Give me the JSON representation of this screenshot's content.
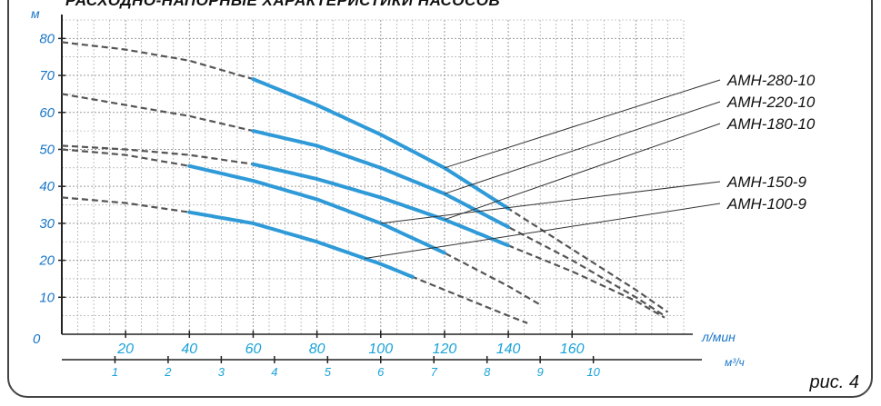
{
  "chart_data": {
    "type": "line",
    "title": "РАСХОДНО-НАПОРНЫЕ ХАРАКТЕРИСТИКИ НАСОСОВ",
    "ylabel": "м",
    "y_origin_label": "0",
    "ylim": [
      0,
      85
    ],
    "yticks": [
      10,
      20,
      30,
      40,
      50,
      60,
      70,
      80
    ],
    "xlabel": "л/мин",
    "xlim": [
      0,
      195
    ],
    "xticks": [
      20,
      40,
      60,
      80,
      100,
      120,
      140,
      160
    ],
    "x2label": "м³/ч",
    "x2ticks": [
      1,
      2,
      3,
      4,
      5,
      6,
      7,
      8,
      9,
      10
    ],
    "grid": true,
    "series": [
      {
        "name": "АМН-280-10",
        "x": [
          0,
          20,
          40,
          60,
          80,
          100,
          120,
          140,
          160,
          180,
          190
        ],
        "y": [
          79,
          77,
          74,
          69,
          62,
          54,
          45,
          34,
          23,
          12,
          6
        ],
        "op_range": [
          60,
          140
        ]
      },
      {
        "name": "АМН-220-10",
        "x": [
          0,
          20,
          40,
          60,
          80,
          100,
          120,
          140,
          160,
          180,
          189
        ],
        "y": [
          65,
          62,
          59,
          55,
          51,
          45,
          38,
          29,
          20,
          10,
          5
        ],
        "op_range": [
          60,
          140
        ]
      },
      {
        "name": "АМН-180-10",
        "x": [
          0,
          20,
          40,
          60,
          80,
          100,
          120,
          140,
          160,
          180,
          189
        ],
        "y": [
          51,
          50,
          48.5,
          46,
          42,
          37,
          31,
          24,
          17,
          9,
          4.5
        ],
        "op_range": [
          60,
          140
        ]
      },
      {
        "name": "АМН-150-9",
        "x": [
          0,
          20,
          40,
          60,
          80,
          100,
          120,
          140,
          150
        ],
        "y": [
          50,
          48.5,
          45.5,
          41.5,
          36.5,
          30,
          22,
          13,
          8
        ],
        "op_range": [
          40,
          120
        ]
      },
      {
        "name": "АМН-100-9",
        "x": [
          0,
          20,
          40,
          60,
          80,
          100,
          120,
          140,
          146
        ],
        "y": [
          37,
          35.5,
          33,
          30,
          25,
          19,
          12,
          5,
          3
        ],
        "op_range": [
          40,
          110
        ]
      }
    ]
  },
  "figure_label": "рис. 4",
  "colors": {
    "curve": "#2f9ad8",
    "dashed": "#555555",
    "axis_blue": "#1aa3d9",
    "axis_text": "#1976c8",
    "grid": "#9a9a9a",
    "leader": "#333333"
  }
}
